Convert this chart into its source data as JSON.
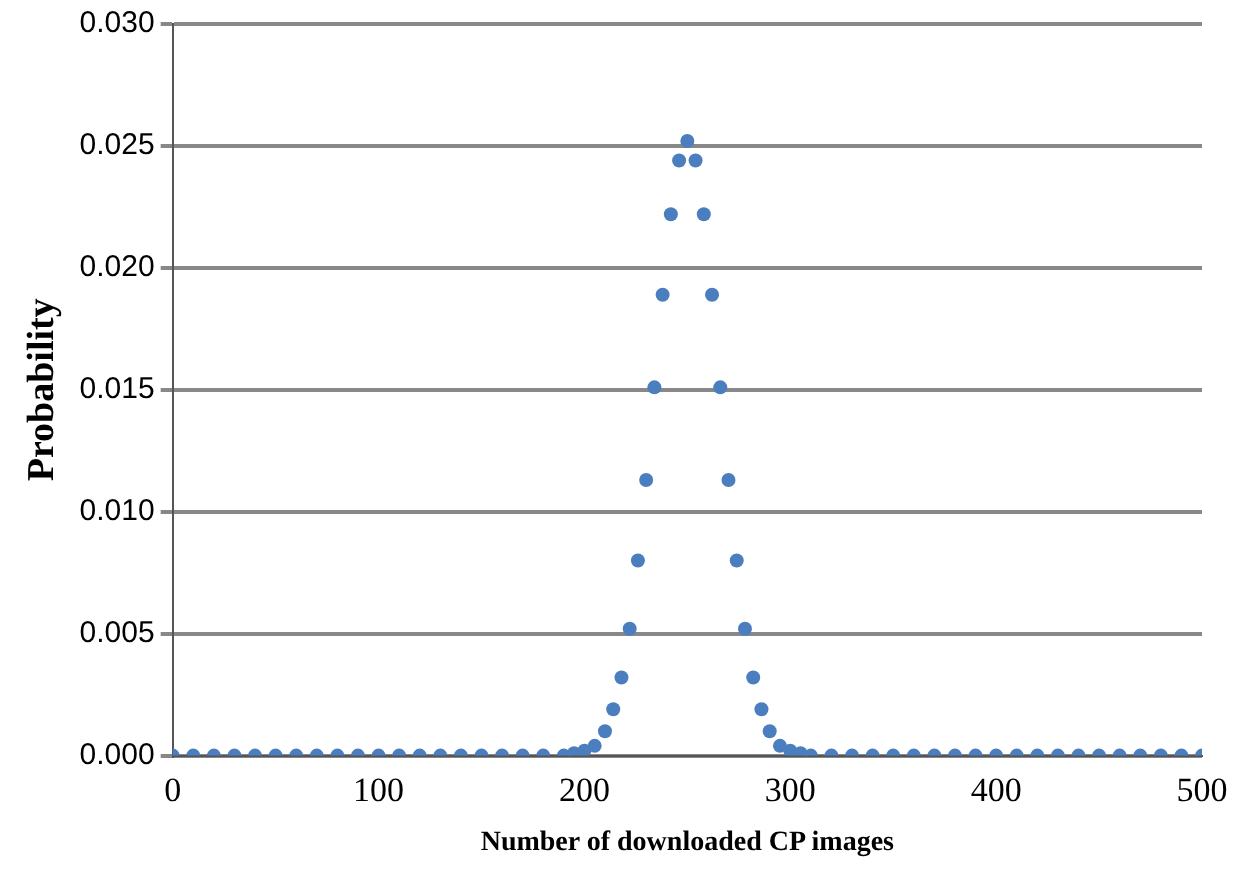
{
  "chart_data": {
    "type": "scatter",
    "xlabel": "Number of downloaded CP images",
    "ylabel": "Probability",
    "x": [
      0,
      10,
      20,
      30,
      40,
      50,
      60,
      70,
      80,
      90,
      100,
      110,
      120,
      130,
      140,
      150,
      160,
      170,
      180,
      190,
      195,
      200,
      205,
      210,
      214,
      218,
      222,
      226,
      230,
      234,
      238,
      242,
      246,
      250,
      254,
      258,
      262,
      266,
      270,
      274,
      278,
      282,
      286,
      290,
      295,
      300,
      305,
      310,
      320,
      330,
      340,
      350,
      360,
      370,
      380,
      390,
      400,
      410,
      420,
      430,
      440,
      450,
      460,
      470,
      480,
      490,
      500
    ],
    "values": [
      0,
      0,
      0,
      0,
      0,
      0,
      0,
      0,
      0,
      0,
      0,
      0,
      0,
      0,
      0,
      0,
      0,
      0,
      0,
      0,
      0.0001,
      0.0002,
      0.0004,
      0.001,
      0.0019,
      0.0032,
      0.0052,
      0.008,
      0.0113,
      0.0151,
      0.0189,
      0.0222,
      0.0244,
      0.0252,
      0.0244,
      0.0222,
      0.0189,
      0.0151,
      0.0113,
      0.008,
      0.0052,
      0.0032,
      0.0019,
      0.001,
      0.0004,
      0.0002,
      0.0001,
      0,
      0,
      0,
      0,
      0,
      0,
      0,
      0,
      0,
      0,
      0,
      0,
      0,
      0,
      0,
      0,
      0,
      0,
      0,
      0
    ],
    "color": "#4a7ebf",
    "marker": "circle",
    "xlim": [
      0,
      500
    ],
    "xticks": [
      0,
      100,
      200,
      300,
      400,
      500
    ],
    "ylim": [
      0,
      0.03
    ],
    "yticks": [
      {
        "value": 0,
        "label": "0.000"
      },
      {
        "value": 0.005,
        "label": "0.005"
      },
      {
        "value": 0.01,
        "label": "0.010"
      },
      {
        "value": 0.015,
        "label": "0.015"
      },
      {
        "value": 0.02,
        "label": "0.020"
      },
      {
        "value": 0.025,
        "label": "0.025"
      },
      {
        "value": 0.03,
        "label": "0.030"
      }
    ],
    "grid": "y",
    "legend": false
  }
}
